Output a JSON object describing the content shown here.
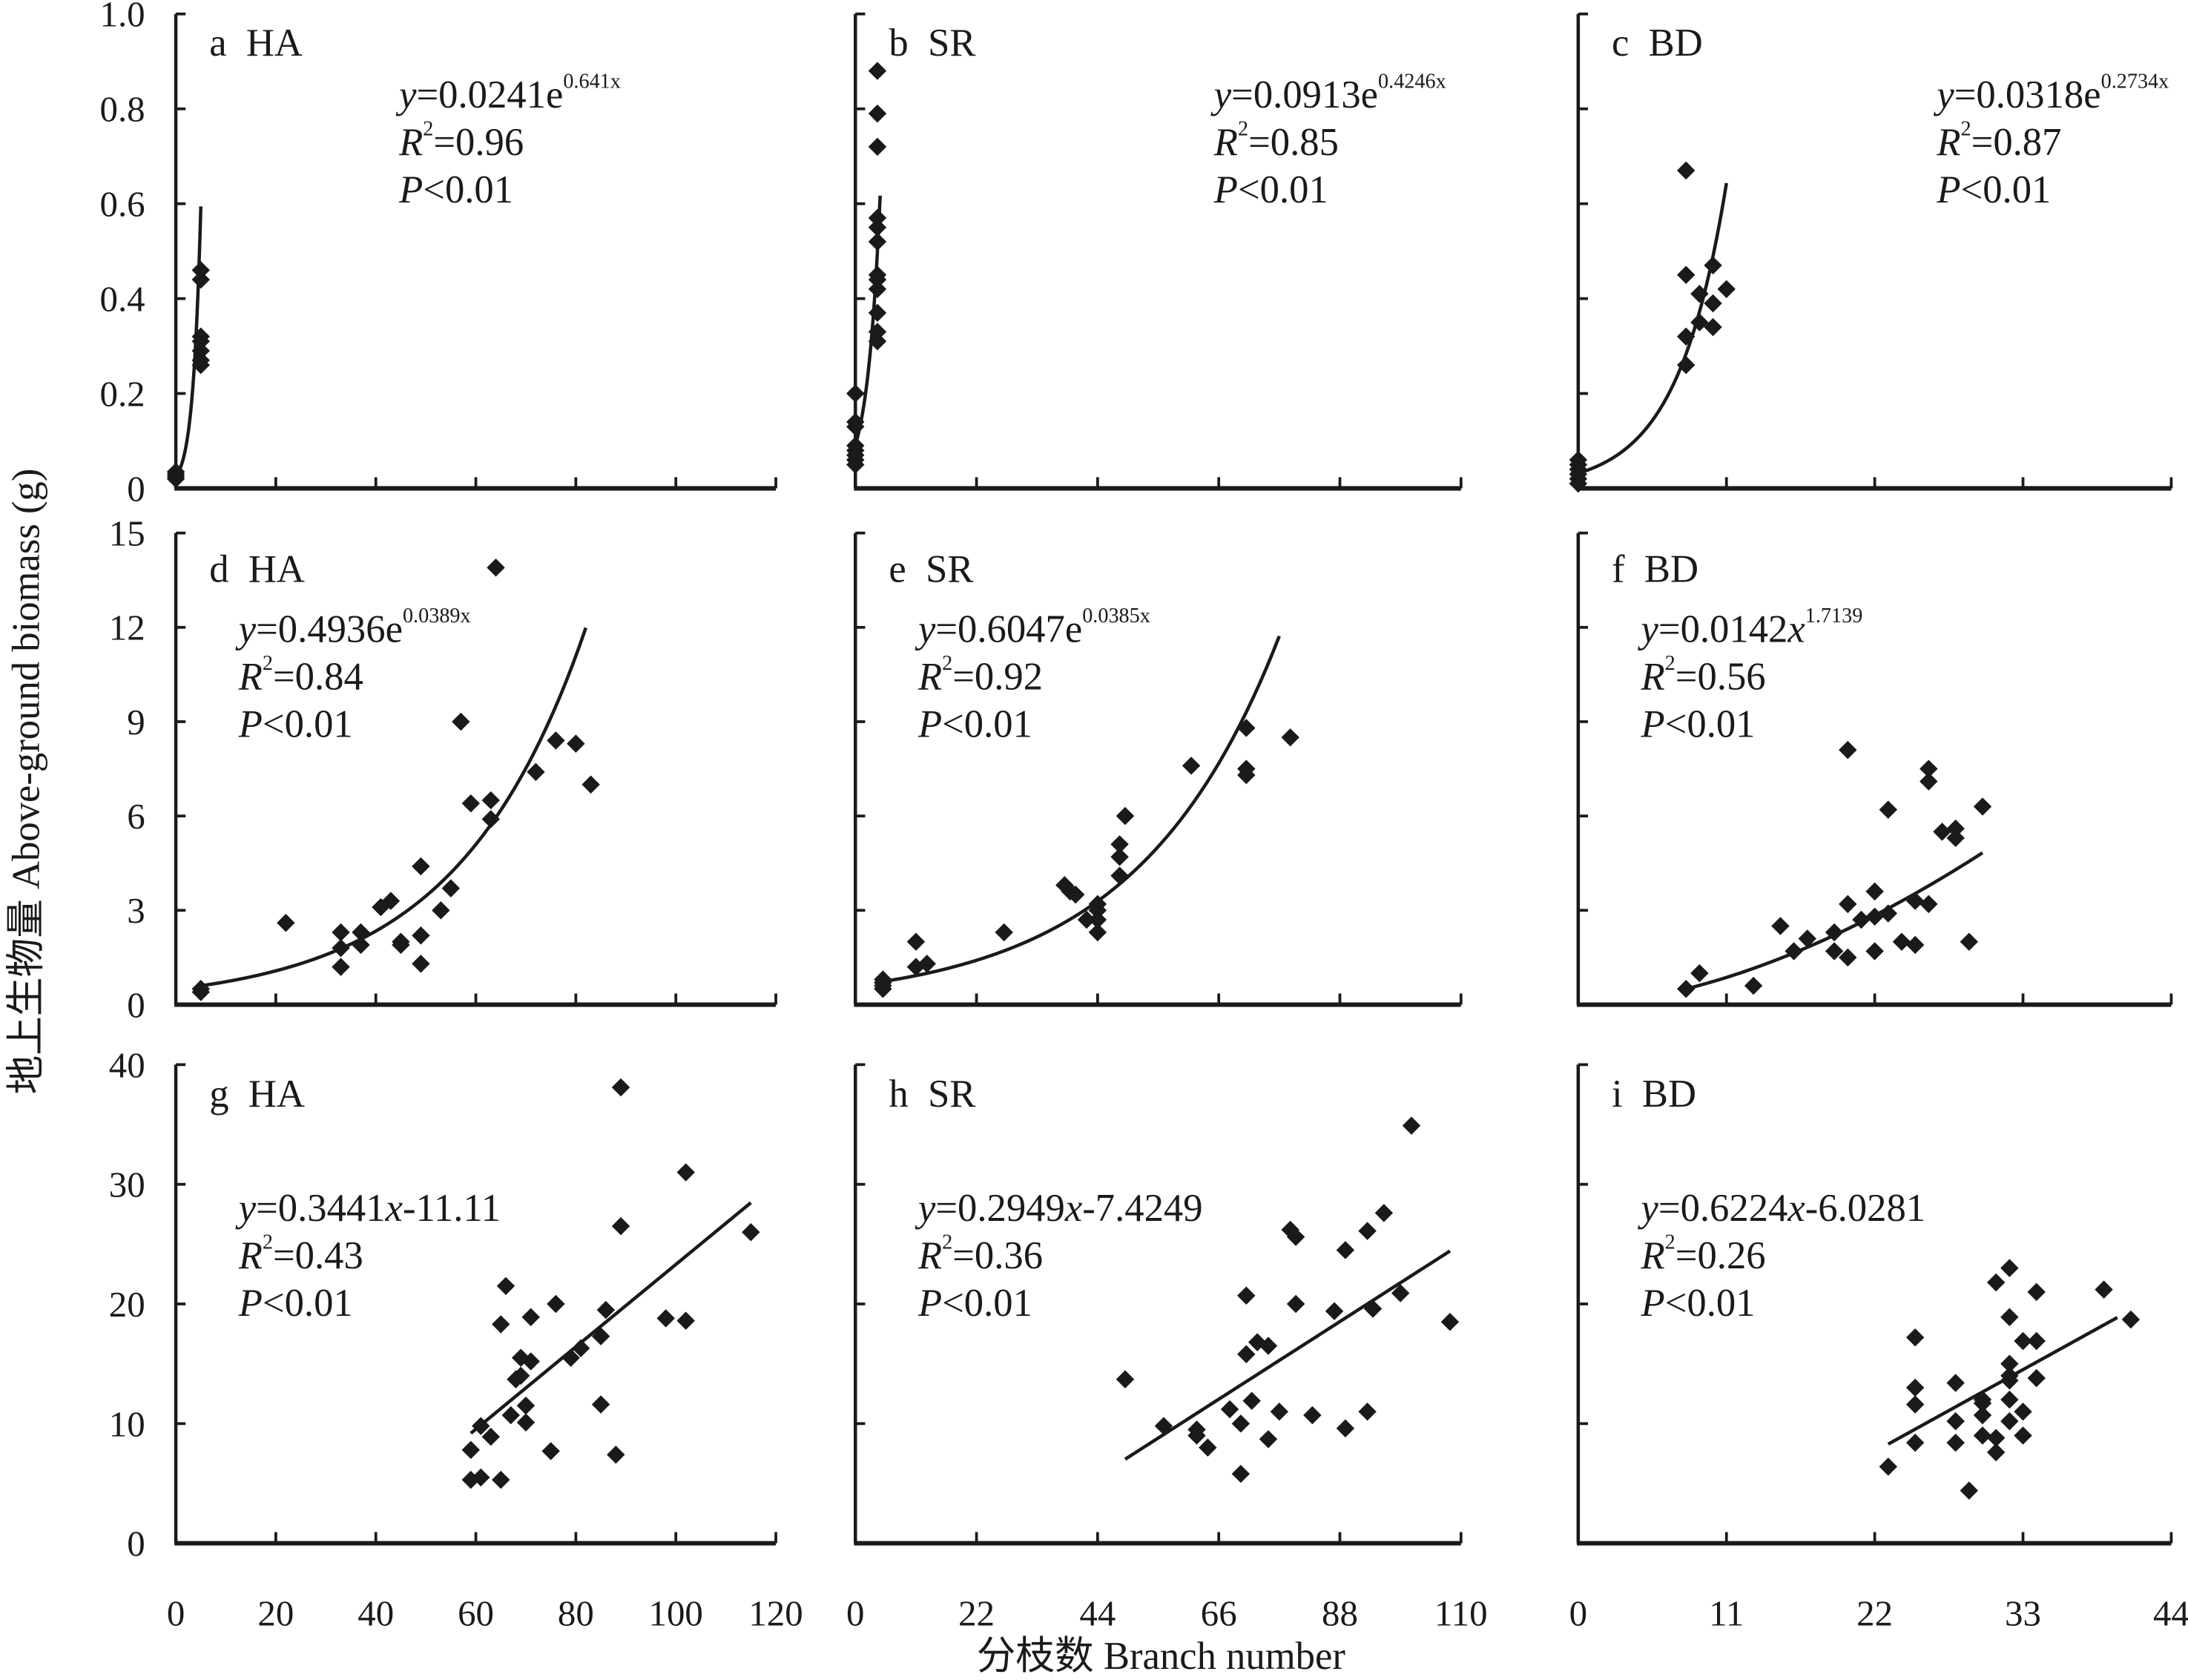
{
  "figure": {
    "ylabel": "地上生物量 Above-ground  biomass (g)",
    "xlabel": "分枝数 Branch number"
  },
  "chart_data": [
    {
      "id": "a",
      "type": "scatter",
      "title": "a  HA",
      "xlim": [
        0,
        120
      ],
      "xticks": [
        0,
        20,
        40,
        60,
        80,
        100,
        120
      ],
      "ylim": [
        0,
        1.0
      ],
      "yticks": [
        0,
        0.2,
        0.4,
        0.6,
        0.8,
        1.0
      ],
      "ytick_labels": [
        "0",
        "0.2",
        "0.4",
        "0.6",
        "0.8",
        "1.0"
      ],
      "fit": {
        "kind": "exp",
        "a": 0.0241,
        "b": 0.641,
        "xrange": [
          0,
          5
        ]
      },
      "equation": {
        "lhs": "y",
        "body": "=0.0241e",
        "sup": "0.641x"
      },
      "r2": "=0.96",
      "p": "<0.01",
      "eq_pos": "top-center",
      "points": [
        [
          0,
          0.02
        ],
        [
          0,
          0.025
        ],
        [
          0,
          0.03
        ],
        [
          0,
          0.035
        ],
        [
          5,
          0.26
        ],
        [
          5,
          0.27
        ],
        [
          5,
          0.29
        ],
        [
          5,
          0.31
        ],
        [
          5,
          0.32
        ],
        [
          5,
          0.44
        ],
        [
          5,
          0.46
        ]
      ]
    },
    {
      "id": "b",
      "type": "scatter",
      "title": "b  SR",
      "xlim": [
        0,
        110
      ],
      "xticks": [
        0,
        22,
        44,
        66,
        88,
        110
      ],
      "ylim": [
        0,
        1.0
      ],
      "yticks": [
        0,
        0.2,
        0.4,
        0.6,
        0.8,
        1.0
      ],
      "ytick_labels": [],
      "fit": {
        "kind": "exp",
        "a": 0.0913,
        "b": 0.4246,
        "xrange": [
          0,
          4.5
        ]
      },
      "equation": {
        "lhs": "y",
        "body": "=0.0913e",
        "sup": "0.4246x"
      },
      "r2": "=0.85",
      "p": "<0.01",
      "eq_pos": "top-right",
      "points": [
        [
          0,
          0.05
        ],
        [
          0,
          0.06
        ],
        [
          0,
          0.07
        ],
        [
          0,
          0.08
        ],
        [
          0,
          0.09
        ],
        [
          0,
          0.13
        ],
        [
          0,
          0.14
        ],
        [
          0,
          0.2
        ],
        [
          4,
          0.31
        ],
        [
          4,
          0.33
        ],
        [
          4,
          0.37
        ],
        [
          4,
          0.42
        ],
        [
          4,
          0.44
        ],
        [
          4,
          0.45
        ],
        [
          4,
          0.52
        ],
        [
          4,
          0.55
        ],
        [
          4,
          0.57
        ],
        [
          4,
          0.72
        ],
        [
          4,
          0.79
        ],
        [
          4,
          0.88
        ]
      ]
    },
    {
      "id": "c",
      "type": "scatter",
      "title": "c  BD",
      "xlim": [
        0,
        44
      ],
      "xticks": [
        0,
        11,
        22,
        33,
        44
      ],
      "ylim": [
        0,
        1.0
      ],
      "yticks": [
        0,
        0.2,
        0.4,
        0.6,
        0.8,
        1.0
      ],
      "ytick_labels": [],
      "fit": {
        "kind": "exp",
        "a": 0.0318,
        "b": 0.2734,
        "xrange": [
          0,
          11
        ]
      },
      "equation": {
        "lhs": "y",
        "body": "=0.0318e",
        "sup": "0.2734x"
      },
      "r2": "=0.87",
      "p": "<0.01",
      "eq_pos": "top-right",
      "points": [
        [
          0,
          0.01
        ],
        [
          0,
          0.02
        ],
        [
          0,
          0.03
        ],
        [
          0,
          0.04
        ],
        [
          0,
          0.05
        ],
        [
          0,
          0.06
        ],
        [
          8,
          0.26
        ],
        [
          8,
          0.32
        ],
        [
          8,
          0.45
        ],
        [
          8,
          0.67
        ],
        [
          9,
          0.35
        ],
        [
          9,
          0.41
        ],
        [
          10,
          0.34
        ],
        [
          10,
          0.39
        ],
        [
          10,
          0.47
        ],
        [
          11,
          0.42
        ]
      ]
    },
    {
      "id": "d",
      "type": "scatter",
      "title": "d  HA",
      "xlim": [
        0,
        120
      ],
      "xticks": [
        0,
        20,
        40,
        60,
        80,
        100,
        120
      ],
      "ylim": [
        0,
        15
      ],
      "yticks": [
        0,
        3,
        6,
        9,
        12,
        15
      ],
      "ytick_labels": [
        "0",
        "3",
        "6",
        "9",
        "12",
        "15"
      ],
      "fit": {
        "kind": "exp",
        "a": 0.4936,
        "b": 0.0389,
        "xrange": [
          5,
          82
        ]
      },
      "equation": {
        "lhs": "y",
        "body": "=0.4936e",
        "sup": "0.0389x"
      },
      "r2": "=0.84",
      "p": "<0.01",
      "eq_pos": "top-left",
      "points": [
        [
          5,
          0.4
        ],
        [
          5,
          0.5
        ],
        [
          22,
          2.6
        ],
        [
          33,
          1.2
        ],
        [
          33,
          1.8
        ],
        [
          33,
          2.3
        ],
        [
          37,
          1.9
        ],
        [
          37,
          2.3
        ],
        [
          41,
          3.1
        ],
        [
          43,
          3.3
        ],
        [
          45,
          1.9
        ],
        [
          45,
          2.0
        ],
        [
          49,
          1.3
        ],
        [
          49,
          2.2
        ],
        [
          49,
          4.4
        ],
        [
          53,
          3.0
        ],
        [
          55,
          3.7
        ],
        [
          57,
          9.0
        ],
        [
          59,
          6.4
        ],
        [
          63,
          6.5
        ],
        [
          63,
          5.9
        ],
        [
          64,
          13.9
        ],
        [
          72,
          7.4
        ],
        [
          76,
          8.4
        ],
        [
          80,
          8.3
        ],
        [
          83,
          7.0
        ]
      ]
    },
    {
      "id": "e",
      "type": "scatter",
      "title": "e  SR",
      "xlim": [
        0,
        110
      ],
      "xticks": [
        0,
        22,
        44,
        66,
        88,
        110
      ],
      "ylim": [
        0,
        15
      ],
      "yticks": [
        0,
        3,
        6,
        9,
        12,
        15
      ],
      "ytick_labels": [],
      "fit": {
        "kind": "exp",
        "a": 0.6047,
        "b": 0.0385,
        "xrange": [
          5,
          77
        ]
      },
      "equation": {
        "lhs": "y",
        "body": "=0.6047e",
        "sup": "0.0385x"
      },
      "r2": "=0.92",
      "p": "<0.01",
      "eq_pos": "top-left",
      "points": [
        [
          5,
          0.5
        ],
        [
          5,
          0.6
        ],
        [
          5,
          0.7
        ],
        [
          5,
          0.8
        ],
        [
          11,
          2.0
        ],
        [
          11,
          1.2
        ],
        [
          13,
          1.3
        ],
        [
          27,
          2.3
        ],
        [
          38,
          3.8
        ],
        [
          39,
          3.6
        ],
        [
          40,
          3.5
        ],
        [
          42,
          2.7
        ],
        [
          44,
          2.3
        ],
        [
          44,
          2.7
        ],
        [
          44,
          3.0
        ],
        [
          44,
          3.2
        ],
        [
          48,
          4.1
        ],
        [
          48,
          4.7
        ],
        [
          48,
          5.1
        ],
        [
          49,
          6.0
        ],
        [
          61,
          7.6
        ],
        [
          71,
          8.8
        ],
        [
          71,
          7.5
        ],
        [
          71,
          7.3
        ],
        [
          79,
          8.5
        ]
      ]
    },
    {
      "id": "f",
      "type": "scatter",
      "title": "f  BD",
      "xlim": [
        0,
        44
      ],
      "xticks": [
        0,
        11,
        22,
        33,
        44
      ],
      "ylim": [
        0,
        15
      ],
      "yticks": [
        0,
        3,
        6,
        9,
        12,
        15
      ],
      "ytick_labels": [],
      "fit": {
        "kind": "power",
        "a": 0.0142,
        "b": 1.7139,
        "xrange": [
          8,
          30
        ]
      },
      "equation": {
        "lhs": "y",
        "body": "=0.0142",
        "xvar": "x",
        "sup": "1.7139"
      },
      "r2": "=0.56",
      "p": "<0.01",
      "eq_pos": "top-left",
      "points": [
        [
          8,
          0.5
        ],
        [
          9,
          1.0
        ],
        [
          13,
          0.6
        ],
        [
          15,
          2.5
        ],
        [
          16,
          1.7
        ],
        [
          17,
          2.1
        ],
        [
          19,
          1.7
        ],
        [
          19,
          2.3
        ],
        [
          20,
          1.5
        ],
        [
          20,
          3.2
        ],
        [
          20,
          8.1
        ],
        [
          21,
          2.7
        ],
        [
          22,
          1.7
        ],
        [
          22,
          2.8
        ],
        [
          22,
          3.6
        ],
        [
          23,
          2.9
        ],
        [
          23,
          6.2
        ],
        [
          24,
          2.0
        ],
        [
          25,
          1.9
        ],
        [
          25,
          3.3
        ],
        [
          26,
          3.2
        ],
        [
          26,
          7.1
        ],
        [
          26,
          7.5
        ],
        [
          27,
          5.5
        ],
        [
          28,
          5.6
        ],
        [
          28,
          5.3
        ],
        [
          29,
          2.0
        ],
        [
          30,
          6.3
        ]
      ]
    },
    {
      "id": "g",
      "type": "scatter",
      "title": "g  HA",
      "xlim": [
        0,
        120
      ],
      "xticks": [
        0,
        20,
        40,
        60,
        80,
        100,
        120
      ],
      "ylim": [
        0,
        40
      ],
      "yticks": [
        0,
        10,
        20,
        30,
        40
      ],
      "ytick_labels": [
        "0",
        "10",
        "20",
        "30",
        "40"
      ],
      "fit": {
        "kind": "linear",
        "a": 0.3441,
        "b": -11.11,
        "xrange": [
          59,
          115
        ]
      },
      "equation": {
        "lhs": "y",
        "body": "=0.3441",
        "xvar": "x",
        "tail": "-11.11"
      },
      "r2": "=0.43",
      "p": "<0.01",
      "eq_pos": "top-left",
      "points": [
        [
          59,
          7.8
        ],
        [
          59,
          5.3
        ],
        [
          61,
          5.5
        ],
        [
          61,
          9.8
        ],
        [
          63,
          8.9
        ],
        [
          65,
          18.3
        ],
        [
          65,
          5.3
        ],
        [
          66,
          21.5
        ],
        [
          67,
          10.7
        ],
        [
          68,
          13.7
        ],
        [
          69,
          15.5
        ],
        [
          69,
          14.0
        ],
        [
          70,
          11.5
        ],
        [
          70,
          10.1
        ],
        [
          71,
          18.9
        ],
        [
          71,
          15.2
        ],
        [
          75,
          7.7
        ],
        [
          76,
          20.0
        ],
        [
          79,
          15.5
        ],
        [
          81,
          16.3
        ],
        [
          85,
          17.3
        ],
        [
          85,
          11.6
        ],
        [
          86,
          19.5
        ],
        [
          88,
          7.4
        ],
        [
          89,
          38.1
        ],
        [
          89,
          26.5
        ],
        [
          98,
          18.8
        ],
        [
          102,
          31.0
        ],
        [
          102,
          18.6
        ],
        [
          115,
          26.0
        ]
      ]
    },
    {
      "id": "h",
      "type": "scatter",
      "title": "h  SR",
      "xlim": [
        0,
        110
      ],
      "xticks": [
        0,
        22,
        44,
        66,
        88,
        110
      ],
      "ylim": [
        0,
        40
      ],
      "yticks": [
        0,
        10,
        20,
        30,
        40
      ],
      "ytick_labels": [],
      "fit": {
        "kind": "linear",
        "a": 0.2949,
        "b": -7.4249,
        "xrange": [
          49,
          108
        ]
      },
      "equation": {
        "lhs": "y",
        "body": "=0.2949",
        "xvar": "x",
        "tail": "-7.4249"
      },
      "r2": "=0.36",
      "p": "<0.01",
      "eq_pos": "top-left",
      "points": [
        [
          49,
          13.7
        ],
        [
          56,
          9.8
        ],
        [
          62,
          9.5
        ],
        [
          62,
          9.0
        ],
        [
          64,
          8.0
        ],
        [
          68,
          11.2
        ],
        [
          70,
          5.8
        ],
        [
          70,
          10.0
        ],
        [
          71,
          15.8
        ],
        [
          71,
          20.7
        ],
        [
          72,
          11.9
        ],
        [
          73,
          16.8
        ],
        [
          75,
          8.7
        ],
        [
          75,
          16.5
        ],
        [
          77,
          11.0
        ],
        [
          79,
          26.2
        ],
        [
          80,
          25.6
        ],
        [
          80,
          20.0
        ],
        [
          83,
          10.7
        ],
        [
          87,
          19.4
        ],
        [
          89,
          24.5
        ],
        [
          89,
          9.6
        ],
        [
          93,
          26.1
        ],
        [
          93,
          11.0
        ],
        [
          94,
          19.6
        ],
        [
          96,
          27.6
        ],
        [
          99,
          20.9
        ],
        [
          101,
          34.9
        ],
        [
          108,
          18.5
        ]
      ]
    },
    {
      "id": "i",
      "type": "scatter",
      "title": "i  BD",
      "xlim": [
        0,
        44
      ],
      "xticks": [
        0,
        11,
        22,
        33,
        44
      ],
      "ylim": [
        0,
        40
      ],
      "yticks": [
        0,
        10,
        20,
        30,
        40
      ],
      "ytick_labels": [],
      "fit": {
        "kind": "linear",
        "a": 0.6224,
        "b": -6.0281,
        "xrange": [
          23,
          40
        ]
      },
      "equation": {
        "lhs": "y",
        "body": "=0.6224",
        "xvar": "x",
        "tail": "-6.0281"
      },
      "r2": "=0.26",
      "p": "<0.01",
      "eq_pos": "top-left",
      "points": [
        [
          23,
          6.4
        ],
        [
          25,
          8.4
        ],
        [
          25,
          11.6
        ],
        [
          25,
          13.0
        ],
        [
          25,
          17.2
        ],
        [
          28,
          8.4
        ],
        [
          28,
          10.2
        ],
        [
          28,
          13.4
        ],
        [
          29,
          4.4
        ],
        [
          30,
          9.0
        ],
        [
          30,
          10.7
        ],
        [
          30,
          12.0
        ],
        [
          30,
          11.7
        ],
        [
          31,
          7.6
        ],
        [
          31,
          8.8
        ],
        [
          31,
          21.8
        ],
        [
          32,
          10.2
        ],
        [
          32,
          12.0
        ],
        [
          32,
          13.6
        ],
        [
          32,
          14.0
        ],
        [
          32,
          15.0
        ],
        [
          32,
          18.9
        ],
        [
          32,
          23.0
        ],
        [
          33,
          9.0
        ],
        [
          33,
          11.0
        ],
        [
          33,
          16.9
        ],
        [
          34,
          13.8
        ],
        [
          34,
          16.9
        ],
        [
          34,
          21.0
        ],
        [
          39,
          21.2
        ],
        [
          41,
          18.7
        ]
      ]
    }
  ]
}
